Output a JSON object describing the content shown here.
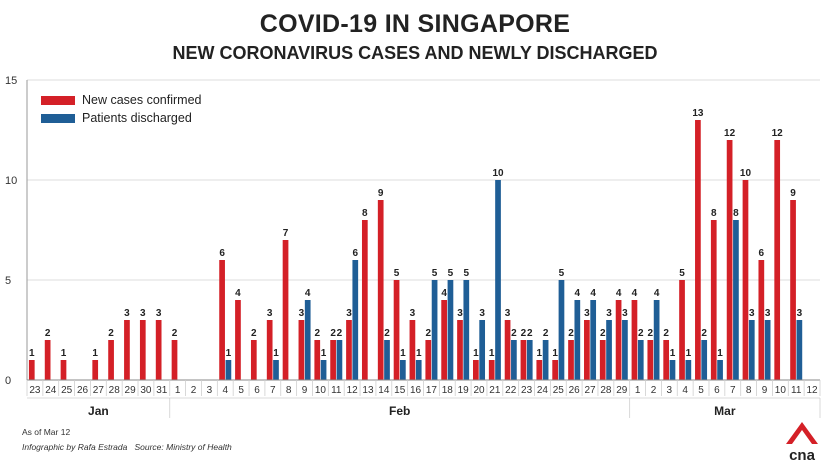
{
  "title": "COVID-19 IN SINGAPORE",
  "subtitle": "NEW CORONAVIRUS CASES AND NEWLY DISCHARGED",
  "note_date": "As of Mar 12",
  "credit": "Infographic by Rafa Estrada",
  "source": "Source: Ministry of Health",
  "logo_text": "cna",
  "colors": {
    "new_cases": "#d42027",
    "discharged": "#1f5e96",
    "grid": "#dddddd"
  },
  "chart_data": {
    "type": "bar",
    "ylim": [
      0,
      15
    ],
    "yticks": [
      "0",
      "5",
      "10",
      "15"
    ],
    "categories": [
      "23",
      "24",
      "25",
      "26",
      "27",
      "28",
      "29",
      "30",
      "31",
      "1",
      "2",
      "3",
      "4",
      "5",
      "6",
      "7",
      "8",
      "9",
      "10",
      "11",
      "12",
      "13",
      "14",
      "15",
      "16",
      "17",
      "18",
      "19",
      "20",
      "21",
      "22",
      "23",
      "24",
      "25",
      "26",
      "27",
      "28",
      "29",
      "1",
      "2",
      "3",
      "4",
      "5",
      "6",
      "7",
      "8",
      "9",
      "10",
      "11",
      "12"
    ],
    "months": [
      {
        "label": "Jan",
        "start": 0,
        "end": 8
      },
      {
        "label": "Feb",
        "start": 9,
        "end": 37
      },
      {
        "label": "Mar",
        "start": 38,
        "end": 49
      }
    ],
    "legend_position": "top-left",
    "series": [
      {
        "name": "New cases confirmed",
        "color": "#d42027",
        "values": [
          1,
          2,
          1,
          0,
          1,
          2,
          3,
          3,
          3,
          2,
          0,
          0,
          6,
          4,
          2,
          3,
          7,
          3,
          2,
          2,
          3,
          8,
          9,
          5,
          3,
          2,
          4,
          3,
          1,
          1,
          3,
          2,
          1,
          1,
          2,
          3,
          2,
          4,
          4,
          2,
          2,
          5,
          13,
          8,
          12,
          10,
          6,
          12,
          9,
          0
        ]
      },
      {
        "name": "Patients discharged",
        "color": "#1f5e96",
        "values": [
          0,
          0,
          0,
          0,
          0,
          0,
          0,
          0,
          0,
          0,
          0,
          0,
          1,
          0,
          0,
          1,
          0,
          4,
          1,
          2,
          6,
          0,
          2,
          1,
          1,
          5,
          5,
          5,
          3,
          10,
          2,
          2,
          2,
          5,
          4,
          4,
          3,
          3,
          2,
          4,
          1,
          1,
          2,
          1,
          8,
          3,
          3,
          0,
          3,
          0
        ]
      }
    ]
  }
}
